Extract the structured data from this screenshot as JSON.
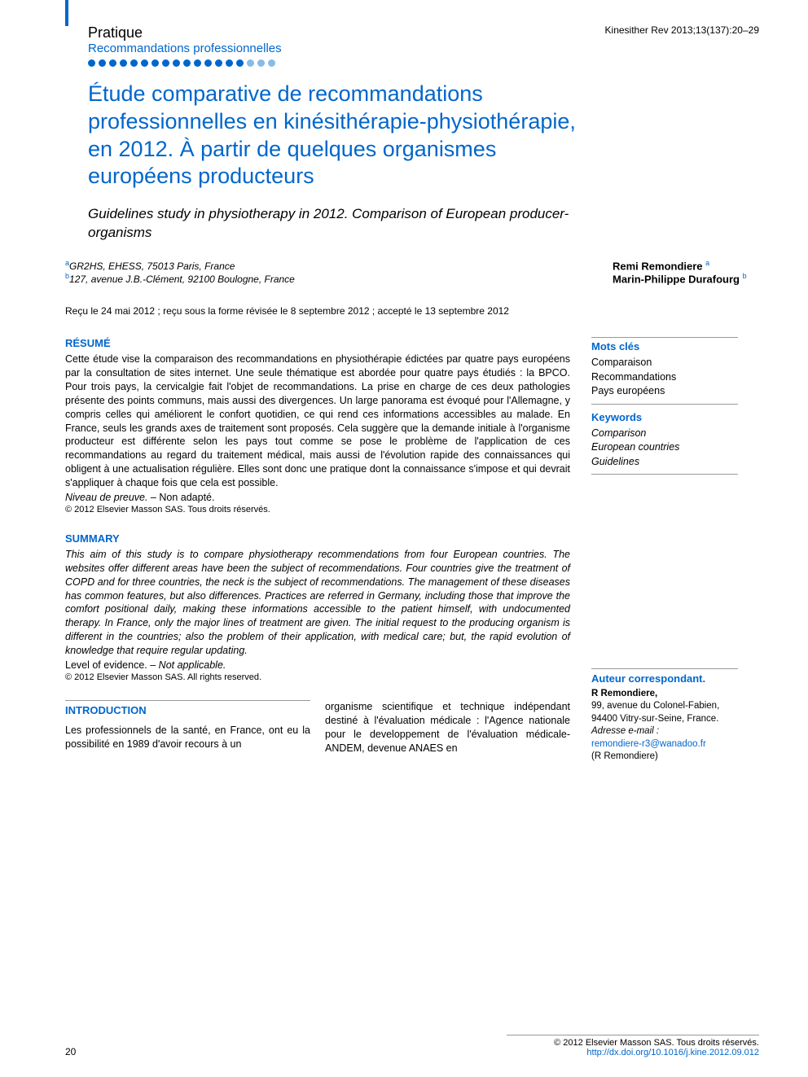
{
  "header": {
    "section": "Pratique",
    "subsection": "Recommandations professionnelles",
    "citation": "Kinesither Rev 2013;13(137):20–29",
    "dots_count": 18,
    "dots_light_from": 15,
    "accent_color": "#0066cc"
  },
  "title_fr": "Étude comparative de recommandations professionnelles en kinésithérapie-physiothérapie, en 2012. À partir de quelques organismes européens producteurs",
  "title_en": "Guidelines study in physiotherapy in 2012. Comparison of European producer-organisms",
  "affiliations": [
    {
      "sup": "a",
      "text": "GR2HS, EHESS, 75013 Paris, France"
    },
    {
      "sup": "b",
      "text": "127, avenue J.B.-Clément, 92100 Boulogne, France"
    }
  ],
  "authors": [
    {
      "name": "Remi Remondiere",
      "sup": "a"
    },
    {
      "name": "Marin-Philippe Durafourg",
      "sup": "b"
    }
  ],
  "dates": "Reçu le 24 mai 2012 ; reçu sous la forme révisée le 8 septembre 2012 ; accepté le 13 septembre 2012",
  "resume": {
    "head": "RÉSUMÉ",
    "body": "Cette étude vise la comparaison des recommandations en physiothérapie édictées par quatre pays européens par la consultation de sites internet. Une seule thématique est abordée pour quatre pays étudiés : la BPCO. Pour trois pays, la cervicalgie fait l'objet de recommandations. La prise en charge de ces deux pathologies présente des points communs, mais aussi des divergences. Un large panorama est évoqué pour l'Allemagne, y compris celles qui améliorent le confort quotidien, ce qui rend ces informations accessibles au malade. En France, seuls les grands axes de traitement sont proposés. Cela suggère que la demande initiale à l'organisme producteur est différente selon les pays tout comme se pose le problème de l'application de ces recommandations au regard du traitement médical, mais aussi de l'évolution rapide des connaissances qui obligent à une actualisation régulière. Elles sont donc une pratique dont la connaissance s'impose et qui devrait s'appliquer à chaque fois que cela est possible.",
    "level_label": "Niveau de preuve. –",
    "level_value": " Non adapté.",
    "copyright": "© 2012 Elsevier Masson SAS. Tous droits réservés."
  },
  "summary": {
    "head": "SUMMARY",
    "body": "This aim of this study is to compare physiotherapy recommendations from four European countries. The websites offer different areas have been the subject of recommendations. Four countries give the treatment of COPD and for three countries, the neck is the subject of recommendations. The management of these diseases has common features, but also differences. Practices are referred in Germany, including those that improve the comfort positional daily, making these informations accessible to the patient himself, with undocumented therapy. In France, only the major lines of treatment are given. The initial request to the producing organism is different in the countries; also the problem of their application, with medical care; but, the rapid evolution of knowledge that require regular updating.",
    "level_label": "Level of evidence. – ",
    "level_value": "Not applicable.",
    "copyright": "© 2012 Elsevier Masson SAS. All rights reserved."
  },
  "introduction": {
    "head": "INTRODUCTION",
    "col1": "Les professionnels de la santé, en France, ont eu la possibilité en 1989 d'avoir recours à un",
    "col2": "organisme scientifique et technique indépendant destiné à l'évaluation médicale : l'Agence nationale pour le developpement de l'évaluation médicale-ANDEM, devenue ANAES en"
  },
  "mots_cles": {
    "head": "Mots clés",
    "items": [
      "Comparaison",
      "Recommandations",
      "Pays européens"
    ]
  },
  "keywords": {
    "head": "Keywords",
    "items": [
      "Comparison",
      "European countries",
      "Guidelines"
    ]
  },
  "corresponding": {
    "head": "Auteur correspondant.",
    "name": "R Remondiere,",
    "address": "99, avenue du Colonel-Fabien, 94400 Vitry-sur-Seine, France.",
    "email_label": "Adresse e-mail :",
    "email": "remondiere-r3@wanadoo.fr",
    "paren": "(R Remondiere)"
  },
  "footer": {
    "page": "20",
    "copyright": "© 2012 Elsevier Masson SAS. Tous droits réservés.",
    "doi": "http://dx.doi.org/10.1016/j.kine.2012.09.012"
  }
}
